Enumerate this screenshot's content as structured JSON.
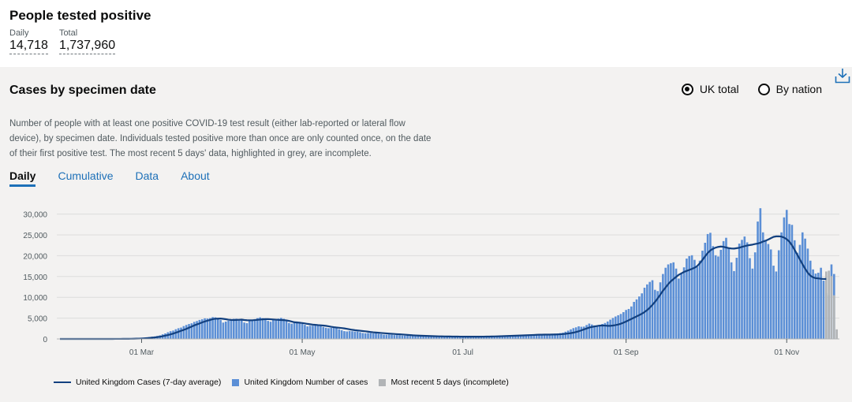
{
  "headline": {
    "title": "People tested positive",
    "daily_label": "Daily",
    "daily_value": "14,718",
    "total_label": "Total",
    "total_value": "1,737,960"
  },
  "card": {
    "title": "Cases by specimen date",
    "download_icon": "download-icon",
    "radios": [
      {
        "label": "UK total",
        "selected": true
      },
      {
        "label": "By nation",
        "selected": false
      }
    ],
    "description": "Number of people with at least one positive COVID-19 test result (either lab-reported or lateral flow device), by specimen date. Individuals tested positive more than once are only counted once, on the date of their first positive test. The most recent 5 days' data, highlighted in grey, are incomplete.",
    "tabs": [
      {
        "label": "Daily",
        "active": true
      },
      {
        "label": "Cumulative",
        "active": false
      },
      {
        "label": "Data",
        "active": false
      },
      {
        "label": "About",
        "active": false
      }
    ],
    "colors": {
      "line": "#12407f",
      "bars": "#5b8fd6",
      "incomplete": "#b1b4b6",
      "tab_link": "#1d70b8"
    }
  },
  "chart_data": {
    "type": "bar",
    "title": "",
    "xlabel": "",
    "ylabel": "",
    "ylim": [
      0,
      32000
    ],
    "y_ticks": [
      0,
      5000,
      10000,
      15000,
      20000,
      25000,
      30000
    ],
    "y_tick_labels": [
      "0",
      "5,000",
      "10,000",
      "15,000",
      "20,000",
      "25,000",
      "30,000"
    ],
    "x_tick_labels": [
      "01 Mar",
      "01 May",
      "01 Jul",
      "01 Sep",
      "01 Nov"
    ],
    "x_tick_dates": [
      "2020-03-01",
      "2020-05-01",
      "2020-07-01",
      "2020-09-01",
      "2020-11-01"
    ],
    "x_range": [
      "2020-01-30",
      "2020-11-21"
    ],
    "grid": "horizontal",
    "legend_position": "bottom",
    "legend": [
      "United Kingdom Cases (7-day average)",
      "United Kingdom Number of cases",
      "Most recent 5 days (incomplete)"
    ],
    "series": [
      {
        "type": "bar",
        "x_start": "2020-01-30",
        "values": [
          2,
          0,
          0,
          0,
          0,
          0,
          2,
          1,
          1,
          0,
          2,
          2,
          1,
          1,
          1,
          2,
          5,
          5,
          2,
          5,
          7,
          17,
          15,
          18,
          29,
          37,
          59,
          66,
          94,
          100,
          129,
          194,
          258,
          340,
          455,
          534,
          605,
          724,
          866,
          1107,
          1317,
          1605,
          1863,
          2013,
          2331,
          2570,
          2734,
          3086,
          3356,
          3585,
          3758,
          4094,
          4297,
          4567,
          4727,
          4945,
          4897,
          5001,
          5244,
          5177,
          4826,
          4532,
          3928,
          4166,
          4372,
          4697,
          4830,
          4855,
          4737,
          4489,
          3939,
          3791,
          4305,
          4521,
          4754,
          5000,
          5183,
          4994,
          4730,
          4328,
          4128,
          4630,
          4791,
          4888,
          5066,
          4838,
          4452,
          3837,
          3668,
          3908,
          4195,
          3946,
          3624,
          3380,
          3007,
          3162,
          3196,
          3330,
          3295,
          3223,
          2870,
          2674,
          2577,
          2657,
          2636,
          2546,
          2331,
          2092,
          1870,
          1799,
          1908,
          1849,
          1770,
          1761,
          1604,
          1422,
          1356,
          1421,
          1438,
          1326,
          1341,
          1238,
          1154,
          1026,
          1014,
          1068,
          1010,
          918,
          928,
          866,
          817,
          799,
          786,
          714,
          707,
          675,
          688,
          626,
          632,
          597,
          601,
          591,
          571,
          565,
          528,
          531,
          549,
          553,
          523,
          531,
          532,
          500,
          523,
          510,
          550,
          555,
          546,
          552,
          570,
          589,
          619,
          621,
          665,
          672,
          681,
          745,
          748,
          763,
          770,
          779,
          800,
          825,
          833,
          838,
          872,
          886,
          960,
          985,
          1011,
          1042,
          1081,
          1004,
          1049,
          1006,
          1044,
          1096,
          1137,
          1197,
          1287,
          1319,
          1401,
          1497,
          1740,
          1993,
          2303,
          2597,
          2787,
          3030,
          2923,
          2959,
          3342,
          3694,
          3468,
          3256,
          3018,
          3229,
          3600,
          3832,
          4190,
          4636,
          5047,
          5390,
          5690,
          6002,
          6442,
          6962,
          7200,
          7800,
          8900,
          9500,
          10200,
          10950,
          12300,
          13100,
          13700,
          14100,
          11800,
          11500,
          13600,
          15600,
          17100,
          17900,
          18200,
          18400,
          16900,
          14500,
          15800,
          17200,
          19300,
          19900,
          20100,
          19000,
          17300,
          18800,
          21200,
          23100,
          25200,
          25500,
          22300,
          20100,
          19800,
          21400,
          23500,
          24300,
          22000,
          18400,
          16300,
          19500,
          22900,
          23800,
          24600,
          23200,
          19400,
          16900,
          20800,
          28200,
          31400,
          25600,
          23500,
          22800,
          21500,
          17600,
          16200,
          21300,
          25600,
          29200,
          31000,
          27600,
          27400,
          23700,
          20700,
          22600,
          25600,
          24100,
          21700,
          18800,
          16700,
          15700,
          15900,
          17100,
          14000,
          11000,
          10500,
          17900,
          15600
        ],
        "color": "#5b8fd6"
      },
      {
        "type": "bar",
        "name": "Most recent 5 days (incomplete)",
        "x_start": "2020-11-16",
        "values": [
          16200,
          16400,
          15100,
          10500,
          2300
        ],
        "color": "#b1b4b6"
      },
      {
        "type": "line",
        "name": "United Kingdom Cases (7-day average)",
        "x_start": "2020-01-30",
        "values": [
          1,
          1,
          1,
          1,
          1,
          1,
          1,
          1,
          1,
          1,
          1,
          1,
          1,
          1,
          1,
          2,
          2,
          3,
          3,
          4,
          6,
          8,
          10,
          13,
          17,
          22,
          30,
          39,
          51,
          66,
          84,
          110,
          150,
          194,
          248,
          308,
          369,
          445,
          538,
          654,
          786,
          938,
          1107,
          1294,
          1500,
          1719,
          1963,
          2171,
          2413,
          2691,
          2966,
          3254,
          3486,
          3720,
          3972,
          4189,
          4385,
          4558,
          4740,
          4859,
          4877,
          4896,
          4822,
          4735,
          4625,
          4568,
          4548,
          4571,
          4603,
          4635,
          4544,
          4493,
          4466,
          4487,
          4534,
          4587,
          4651,
          4706,
          4758,
          4770,
          4720,
          4676,
          4626,
          4576,
          4550,
          4527,
          4456,
          4334,
          4177,
          4018,
          3949,
          3903,
          3821,
          3722,
          3617,
          3529,
          3441,
          3384,
          3324,
          3278,
          3219,
          3148,
          3046,
          2930,
          2831,
          2749,
          2687,
          2612,
          2530,
          2432,
          2312,
          2196,
          2101,
          2039,
          1971,
          1900,
          1833,
          1755,
          1670,
          1590,
          1540,
          1490,
          1432,
          1384,
          1336,
          1286,
          1238,
          1196,
          1152,
          1113,
          1073,
          1024,
          975,
          922,
          872,
          839,
          810,
          782,
          758,
          734,
          710,
          686,
          661,
          641,
          628,
          618,
          608,
          596,
          586,
          579,
          574,
          564,
          556,
          547,
          543,
          539,
          537,
          538,
          538,
          542,
          547,
          553,
          562,
          572,
          585,
          601,
          620,
          641,
          663,
          689,
          713,
          736,
          757,
          779,
          802,
          825,
          849,
          874,
          903,
          932,
          961,
          988,
          1012,
          1024,
          1035,
          1039,
          1043,
          1058,
          1070,
          1094,
          1127,
          1172,
          1236,
          1315,
          1397,
          1513,
          1659,
          1845,
          2058,
          2278,
          2508,
          2735,
          2883,
          3002,
          3118,
          3201,
          3232,
          3207,
          3151,
          3144,
          3218,
          3332,
          3471,
          3657,
          3906,
          4199,
          4499,
          4803,
          5115,
          5429,
          5731,
          6063,
          6457,
          6932,
          7523,
          8185,
          8908,
          9748,
          10662,
          11563,
          12358,
          13173,
          13848,
          14390,
          14905,
          15413,
          15748,
          16095,
          16340,
          16583,
          16830,
          17104,
          17510,
          18165,
          18987,
          19850,
          20644,
          21269,
          21666,
          21940,
          22109,
          22205,
          22118,
          21964,
          21809,
          21729,
          21702,
          21802,
          21911,
          22111,
          22294,
          22445,
          22558,
          22653,
          22797,
          22931,
          23112,
          23405,
          23606,
          23880,
          24211,
          24519,
          24636,
          24654,
          24581,
          24347,
          23966,
          23370,
          22500,
          21400,
          20250,
          19100,
          17950,
          16850,
          15900,
          15200,
          14800,
          14600,
          14550,
          14450,
          14400,
          14420
        ],
        "color": "#12407f"
      }
    ]
  },
  "legend_labels": {
    "line": "United Kingdom Cases (7-day average)",
    "bars": "United Kingdom Number of cases",
    "incomplete": "Most recent 5 days (incomplete)"
  }
}
